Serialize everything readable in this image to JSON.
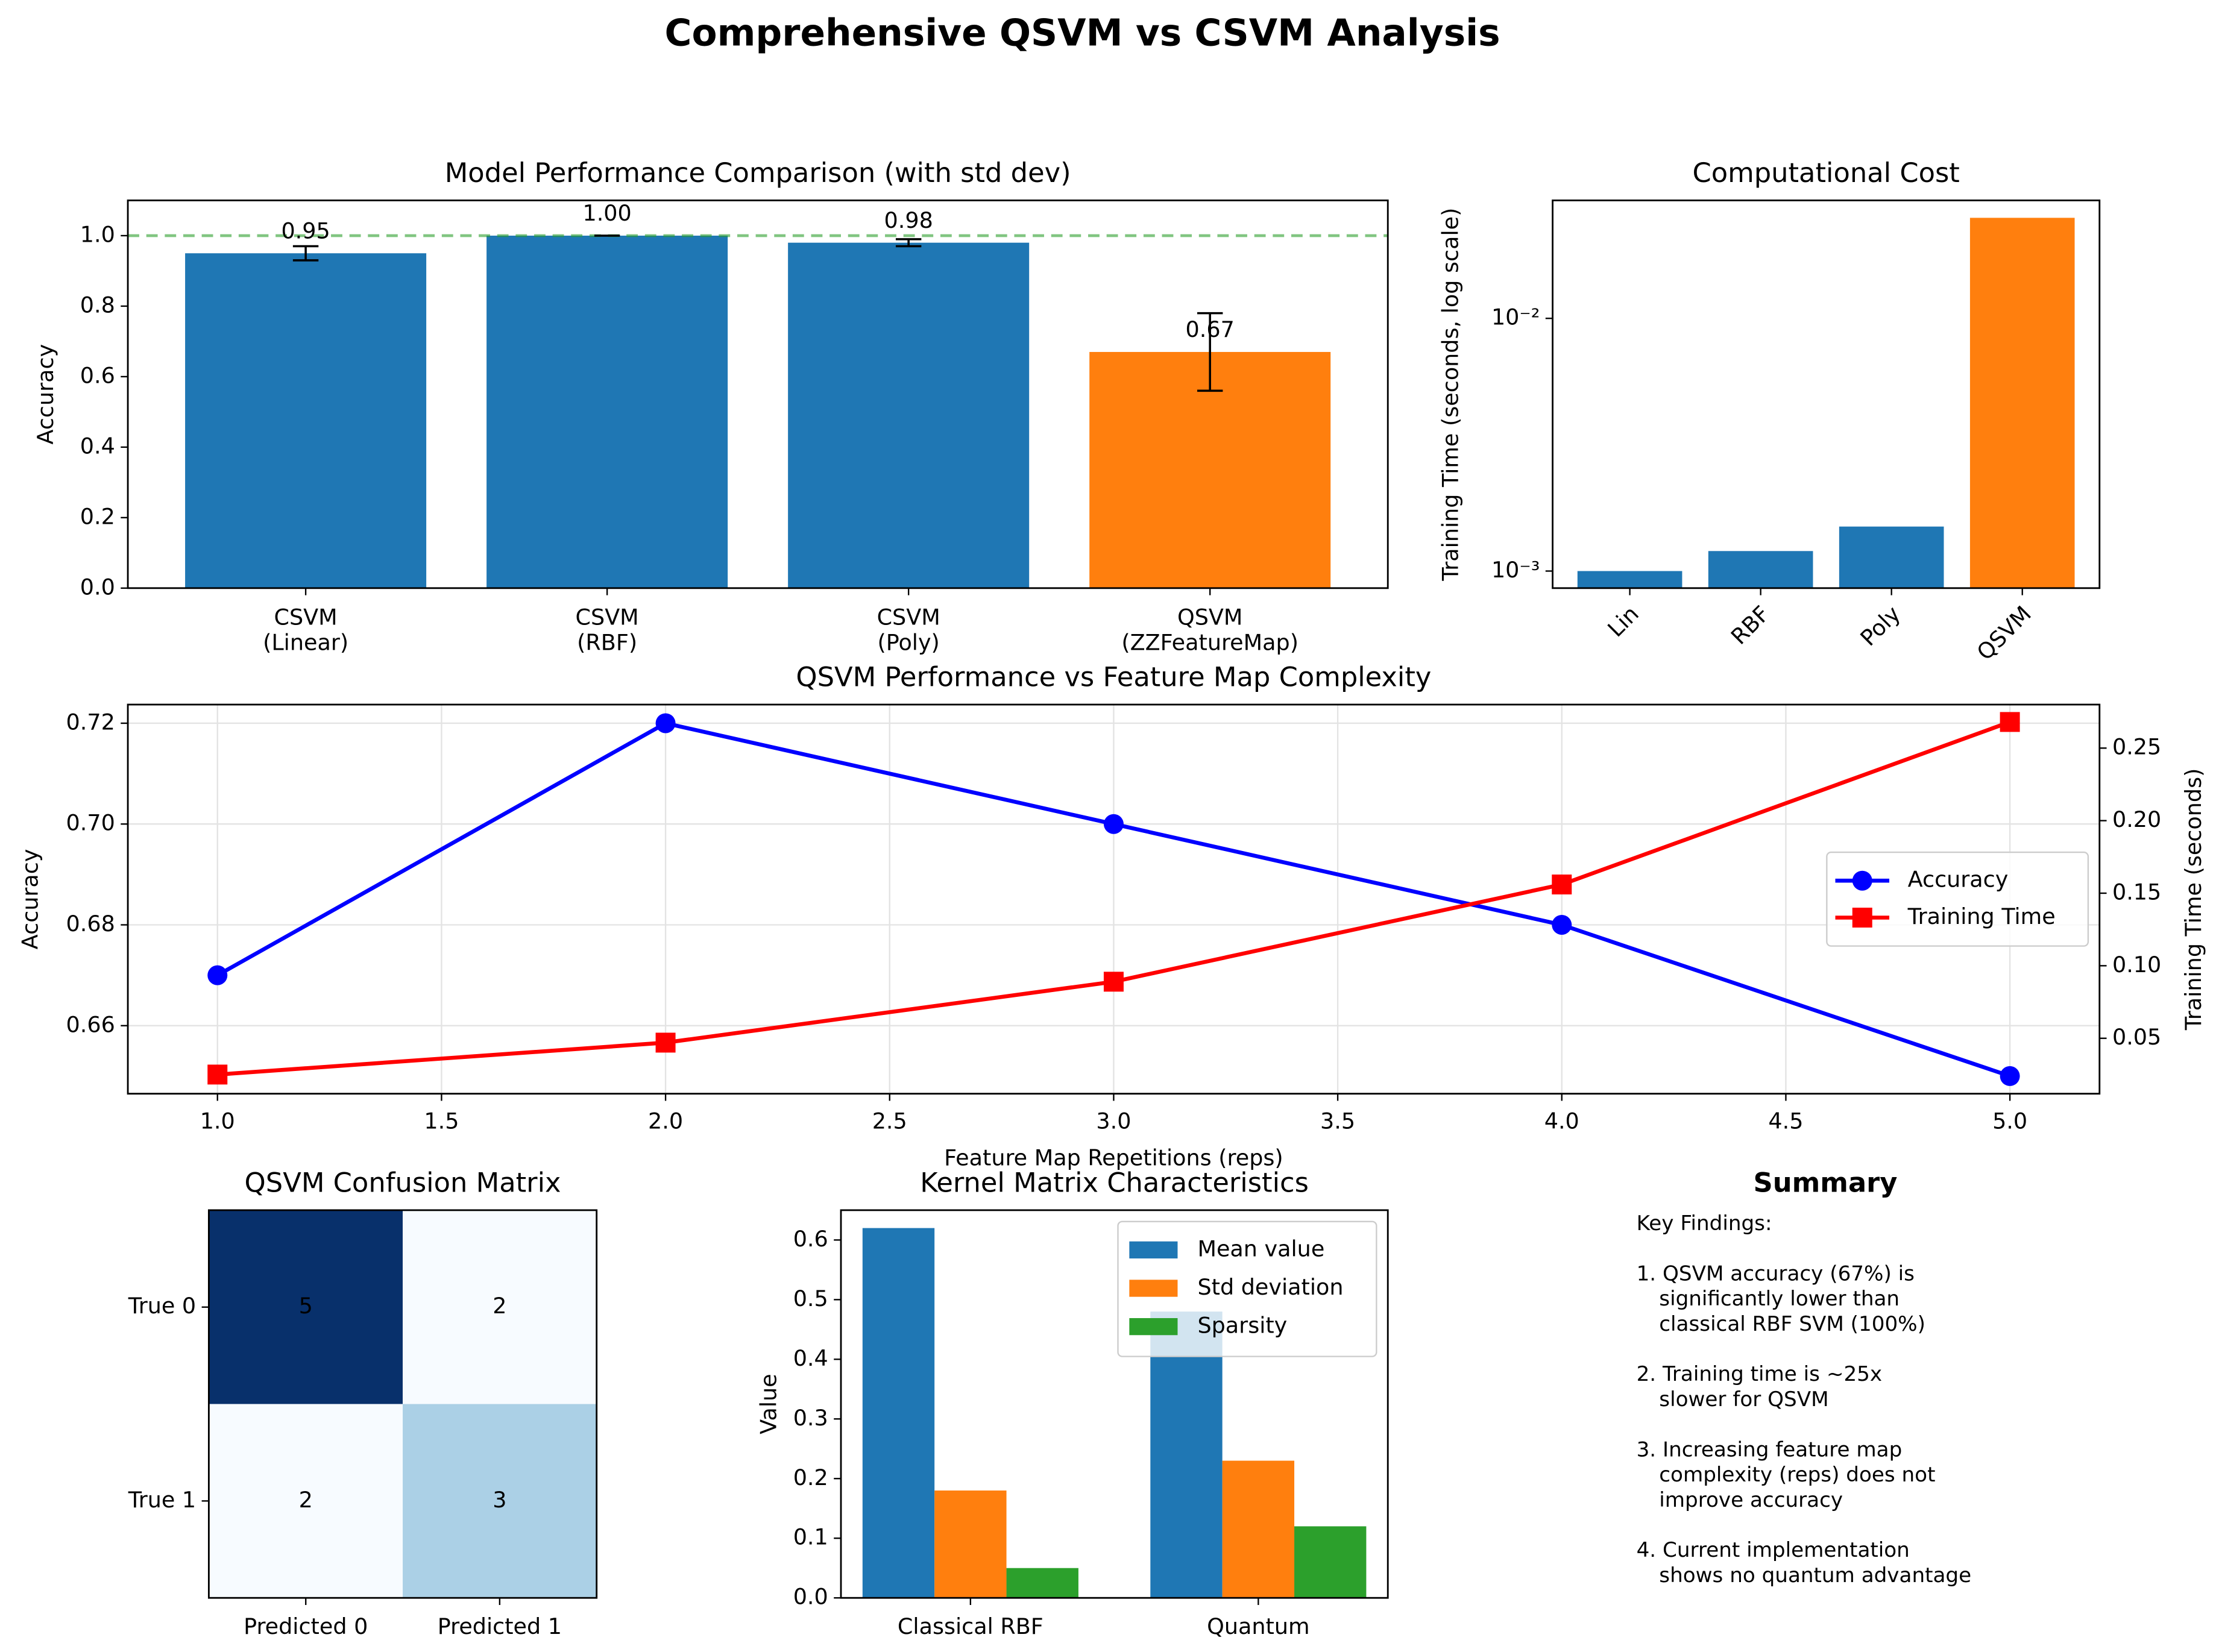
{
  "title": "Comprehensive QSVM vs CSVM Analysis",
  "chart_data": [
    {
      "type": "bar",
      "title": "Model Performance Comparison (with std dev)",
      "ylabel": "Accuracy",
      "categories": [
        "CSVM\n(Linear)",
        "CSVM\n(RBF)",
        "CSVM\n(Poly)",
        "QSVM\n(ZZFeatureMap)"
      ],
      "values": [
        0.95,
        1.0,
        0.98,
        0.67
      ],
      "errors": [
        0.02,
        0.0,
        0.01,
        0.11
      ],
      "value_labels": [
        "0.95",
        "1.00",
        "0.98",
        "0.67"
      ],
      "colors": [
        "#1f77b4",
        "#1f77b4",
        "#1f77b4",
        "#ff7f0e"
      ],
      "hline": 1.0,
      "hline_color": "#2ca02c",
      "ylim": [
        0,
        1.1
      ],
      "yticks": [
        {
          "value": 0,
          "label": "0.0"
        },
        0.2,
        0.4,
        0.6,
        0.8,
        {
          "value": 1,
          "label": "1.0"
        }
      ]
    },
    {
      "type": "bar",
      "title": "Computational Cost",
      "ylabel": "Training Time (seconds, log scale)",
      "log_scale": true,
      "categories": [
        "Lin",
        "RBF",
        "Poly",
        "QSVM"
      ],
      "values": [
        0.001,
        0.0012,
        0.0015,
        0.025
      ],
      "colors": [
        "#1f77b4",
        "#1f77b4",
        "#1f77b4",
        "#ff7f0e"
      ],
      "ylim": [
        0.000856,
        0.0293
      ],
      "yticks": [
        {
          "value": 0.001,
          "label": "10⁻³"
        },
        {
          "value": 0.01,
          "label": "10⁻²"
        }
      ]
    },
    {
      "type": "line",
      "title": "QSVM Performance vs Feature Map Complexity",
      "xlabel": "Feature Map Repetitions (reps)",
      "ylabel": "Accuracy",
      "y2label": "Training Time (seconds)",
      "x": [
        1,
        2,
        3,
        4,
        5
      ],
      "series": [
        {
          "name": "Accuracy",
          "color": "#0000ff",
          "marker": "circle",
          "values": [
            0.67,
            0.72,
            0.7,
            0.68,
            0.65
          ]
        },
        {
          "name": "Training Time",
          "color": "#ff0000",
          "marker": "square",
          "axis": "y2",
          "values": [
            0.025,
            0.047,
            0.089,
            0.156,
            0.268
          ]
        }
      ],
      "xlim": [
        0.8,
        5.2
      ],
      "xticks": [
        {
          "value": 1,
          "label": "1.0"
        },
        1.5,
        {
          "value": 2,
          "label": "2.0"
        },
        2.5,
        {
          "value": 3,
          "label": "3.0"
        },
        3.5,
        {
          "value": 4,
          "label": "4.0"
        },
        4.5,
        {
          "value": 5,
          "label": "5.0"
        }
      ],
      "ylim": [
        0.6465,
        0.7237
      ],
      "yticks": [
        0.66,
        0.68,
        {
          "value": 0.7,
          "label": "0.70"
        },
        0.72
      ],
      "y2lim": [
        0.0118,
        0.28
      ],
      "y2ticks": [
        0.05,
        {
          "value": 0.1,
          "label": "0.10"
        },
        0.15,
        {
          "value": 0.2,
          "label": "0.20"
        },
        0.25
      ],
      "grid": true,
      "legend": "center right"
    },
    {
      "type": "heatmap",
      "title": "QSVM Confusion Matrix",
      "rows": [
        "True 0",
        "True 1"
      ],
      "columns": [
        "Predicted 0",
        "Predicted 1"
      ],
      "values": [
        [
          5,
          2
        ],
        [
          2,
          3
        ]
      ],
      "cmap": [
        "#f7fbff",
        "#deebf7",
        "#c6dbef",
        "#9ecae1",
        "#6baed6",
        "#4292c6",
        "#2171b5",
        "#08519c",
        "#08306b"
      ]
    },
    {
      "type": "bar",
      "title": "Kernel Matrix Characteristics",
      "ylabel": "Value",
      "categories": [
        "Classical RBF",
        "Quantum"
      ],
      "series": [
        {
          "name": "Mean value",
          "color": "#1f77b4",
          "values": [
            0.62,
            0.48
          ]
        },
        {
          "name": "Std deviation",
          "color": "#ff7f0e",
          "values": [
            0.18,
            0.23
          ]
        },
        {
          "name": "Sparsity",
          "color": "#2ca02c",
          "values": [
            0.05,
            0.12
          ]
        }
      ],
      "ylim": [
        0,
        0.65
      ],
      "yticks": [
        {
          "value": 0,
          "label": "0.0"
        },
        0.1,
        0.2,
        0.3,
        0.4,
        0.5,
        0.6
      ],
      "legend": "upper right"
    }
  ],
  "summary": {
    "title": "Summary",
    "paragraphs": [
      [
        "Key Findings:"
      ],
      [
        "1. QSVM accuracy (67%) is",
        "significantly lower than",
        "classical RBF SVM (100%)"
      ],
      [
        "2. Training time is ~25x",
        "slower for QSVM"
      ],
      [
        "3. Increasing feature map",
        "complexity (reps) does not",
        "improve accuracy"
      ],
      [
        "4. Current implementation",
        "shows no quantum advantage"
      ]
    ]
  }
}
